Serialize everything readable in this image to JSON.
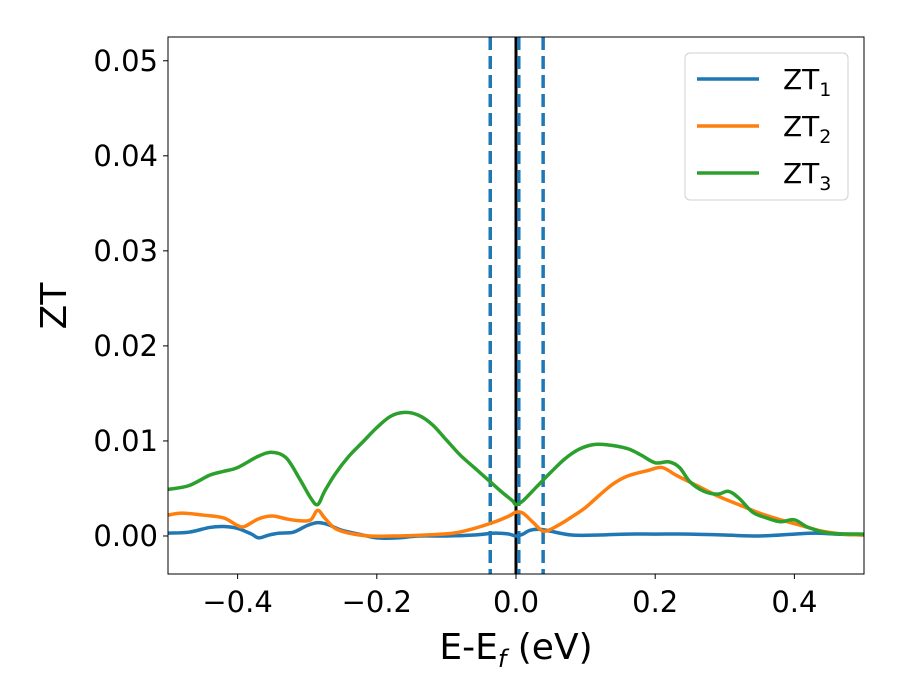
{
  "chart_data": {
    "type": "line",
    "title": "",
    "xlabel": "E-E",
    "xlabel_sub": "f",
    "xlabel_suffix": " (eV)",
    "ylabel": "ZT",
    "xlim": [
      -0.5,
      0.5
    ],
    "ylim": [
      -0.004,
      0.0525
    ],
    "xticks": [
      -0.4,
      -0.2,
      0.0,
      0.2,
      0.4
    ],
    "xtick_labels": [
      "−0.4",
      "−0.2",
      "0.0",
      "0.2",
      "0.4"
    ],
    "yticks": [
      0.0,
      0.01,
      0.02,
      0.03,
      0.04,
      0.05
    ],
    "ytick_labels": [
      "0.00",
      "0.01",
      "0.02",
      "0.03",
      "0.04",
      "0.05"
    ],
    "grid": false,
    "legend_position": "top-right",
    "vlines": [
      {
        "x": 0.0,
        "color": "#000000",
        "style": "solid"
      },
      {
        "x": -0.037,
        "color": "#1f77b4",
        "style": "dashed"
      },
      {
        "x": 0.004,
        "color": "#1f77b4",
        "style": "dashed"
      },
      {
        "x": 0.039,
        "color": "#1f77b4",
        "style": "dashed"
      }
    ],
    "series": [
      {
        "name": "ZT",
        "name_sub": "1",
        "color": "#1f77b4",
        "points": [
          [
            -0.5,
            0.0003
          ],
          [
            -0.47,
            0.0004
          ],
          [
            -0.44,
            0.0009
          ],
          [
            -0.42,
            0.001
          ],
          [
            -0.4,
            0.0008
          ],
          [
            -0.38,
            0.0002
          ],
          [
            -0.37,
            -0.0002
          ],
          [
            -0.355,
            0.0001
          ],
          [
            -0.34,
            0.0003
          ],
          [
            -0.32,
            0.0004
          ],
          [
            -0.3,
            0.0011
          ],
          [
            -0.285,
            0.0014
          ],
          [
            -0.27,
            0.0012
          ],
          [
            -0.25,
            0.0006
          ],
          [
            -0.22,
            0.0001
          ],
          [
            -0.2,
            -0.0002
          ],
          [
            -0.17,
            -0.0002
          ],
          [
            -0.14,
            0.0
          ],
          [
            -0.1,
            0.0
          ],
          [
            -0.06,
            0.0001
          ],
          [
            -0.03,
            0.0003
          ],
          [
            -0.01,
            0.0002
          ],
          [
            0.0,
            0.0
          ],
          [
            0.01,
            0.0002
          ],
          [
            0.02,
            0.0006
          ],
          [
            0.035,
            0.0007
          ],
          [
            0.05,
            0.0005
          ],
          [
            0.08,
            0.0001
          ],
          [
            0.12,
            0.0001
          ],
          [
            0.16,
            0.0002
          ],
          [
            0.2,
            0.0002
          ],
          [
            0.25,
            0.0002
          ],
          [
            0.3,
            0.0001
          ],
          [
            0.35,
            0.0
          ],
          [
            0.4,
            0.0002
          ],
          [
            0.43,
            0.0003
          ],
          [
            0.46,
            0.0002
          ],
          [
            0.5,
            0.0001
          ]
        ]
      },
      {
        "name": "ZT",
        "name_sub": "2",
        "color": "#ff7f0e",
        "points": [
          [
            -0.5,
            0.0022
          ],
          [
            -0.48,
            0.0024
          ],
          [
            -0.45,
            0.0022
          ],
          [
            -0.42,
            0.0019
          ],
          [
            -0.4,
            0.0011
          ],
          [
            -0.39,
            0.001
          ],
          [
            -0.37,
            0.0018
          ],
          [
            -0.35,
            0.0021
          ],
          [
            -0.33,
            0.0018
          ],
          [
            -0.31,
            0.0016
          ],
          [
            -0.295,
            0.0017
          ],
          [
            -0.285,
            0.0027
          ],
          [
            -0.275,
            0.0019
          ],
          [
            -0.26,
            0.0008
          ],
          [
            -0.24,
            0.0003
          ],
          [
            -0.21,
            0.0
          ],
          [
            -0.17,
            0.0
          ],
          [
            -0.13,
            0.0001
          ],
          [
            -0.09,
            0.0003
          ],
          [
            -0.06,
            0.0008
          ],
          [
            -0.03,
            0.0015
          ],
          [
            -0.01,
            0.0021
          ],
          [
            0.0,
            0.0025
          ],
          [
            0.01,
            0.0024
          ],
          [
            0.025,
            0.0014
          ],
          [
            0.04,
            0.0005
          ],
          [
            0.06,
            0.0011
          ],
          [
            0.08,
            0.002
          ],
          [
            0.1,
            0.003
          ],
          [
            0.12,
            0.0043
          ],
          [
            0.14,
            0.0055
          ],
          [
            0.16,
            0.0063
          ],
          [
            0.19,
            0.0069
          ],
          [
            0.21,
            0.0072
          ],
          [
            0.23,
            0.0064
          ],
          [
            0.26,
            0.0053
          ],
          [
            0.29,
            0.0042
          ],
          [
            0.32,
            0.0033
          ],
          [
            0.35,
            0.0024
          ],
          [
            0.38,
            0.0017
          ],
          [
            0.41,
            0.0011
          ],
          [
            0.44,
            0.0005
          ],
          [
            0.47,
            0.0002
          ],
          [
            0.5,
            0.0001
          ]
        ]
      },
      {
        "name": "ZT",
        "name_sub": "3",
        "color": "#2ca02c",
        "points": [
          [
            -0.5,
            0.0049
          ],
          [
            -0.47,
            0.0053
          ],
          [
            -0.44,
            0.0064
          ],
          [
            -0.42,
            0.0068
          ],
          [
            -0.4,
            0.0072
          ],
          [
            -0.37,
            0.0084
          ],
          [
            -0.35,
            0.0088
          ],
          [
            -0.33,
            0.0082
          ],
          [
            -0.31,
            0.0059
          ],
          [
            -0.295,
            0.004
          ],
          [
            -0.285,
            0.0033
          ],
          [
            -0.275,
            0.0047
          ],
          [
            -0.26,
            0.0065
          ],
          [
            -0.24,
            0.0084
          ],
          [
            -0.22,
            0.0099
          ],
          [
            -0.2,
            0.0114
          ],
          [
            -0.18,
            0.0126
          ],
          [
            -0.16,
            0.013
          ],
          [
            -0.14,
            0.0127
          ],
          [
            -0.12,
            0.0117
          ],
          [
            -0.1,
            0.0101
          ],
          [
            -0.08,
            0.0085
          ],
          [
            -0.06,
            0.0072
          ],
          [
            -0.04,
            0.0059
          ],
          [
            -0.02,
            0.0046
          ],
          [
            -0.005,
            0.0037
          ],
          [
            0.0,
            0.0033
          ],
          [
            0.01,
            0.0037
          ],
          [
            0.03,
            0.0052
          ],
          [
            0.05,
            0.0067
          ],
          [
            0.07,
            0.0081
          ],
          [
            0.09,
            0.0091
          ],
          [
            0.11,
            0.0096
          ],
          [
            0.13,
            0.0096
          ],
          [
            0.16,
            0.0092
          ],
          [
            0.18,
            0.0085
          ],
          [
            0.2,
            0.0077
          ],
          [
            0.22,
            0.0078
          ],
          [
            0.235,
            0.0072
          ],
          [
            0.25,
            0.0057
          ],
          [
            0.27,
            0.0047
          ],
          [
            0.29,
            0.0044
          ],
          [
            0.305,
            0.0047
          ],
          [
            0.32,
            0.004
          ],
          [
            0.34,
            0.0025
          ],
          [
            0.36,
            0.0019
          ],
          [
            0.38,
            0.0015
          ],
          [
            0.4,
            0.0017
          ],
          [
            0.42,
            0.0009
          ],
          [
            0.45,
            0.0003
          ],
          [
            0.5,
            0.0002
          ]
        ]
      }
    ]
  }
}
